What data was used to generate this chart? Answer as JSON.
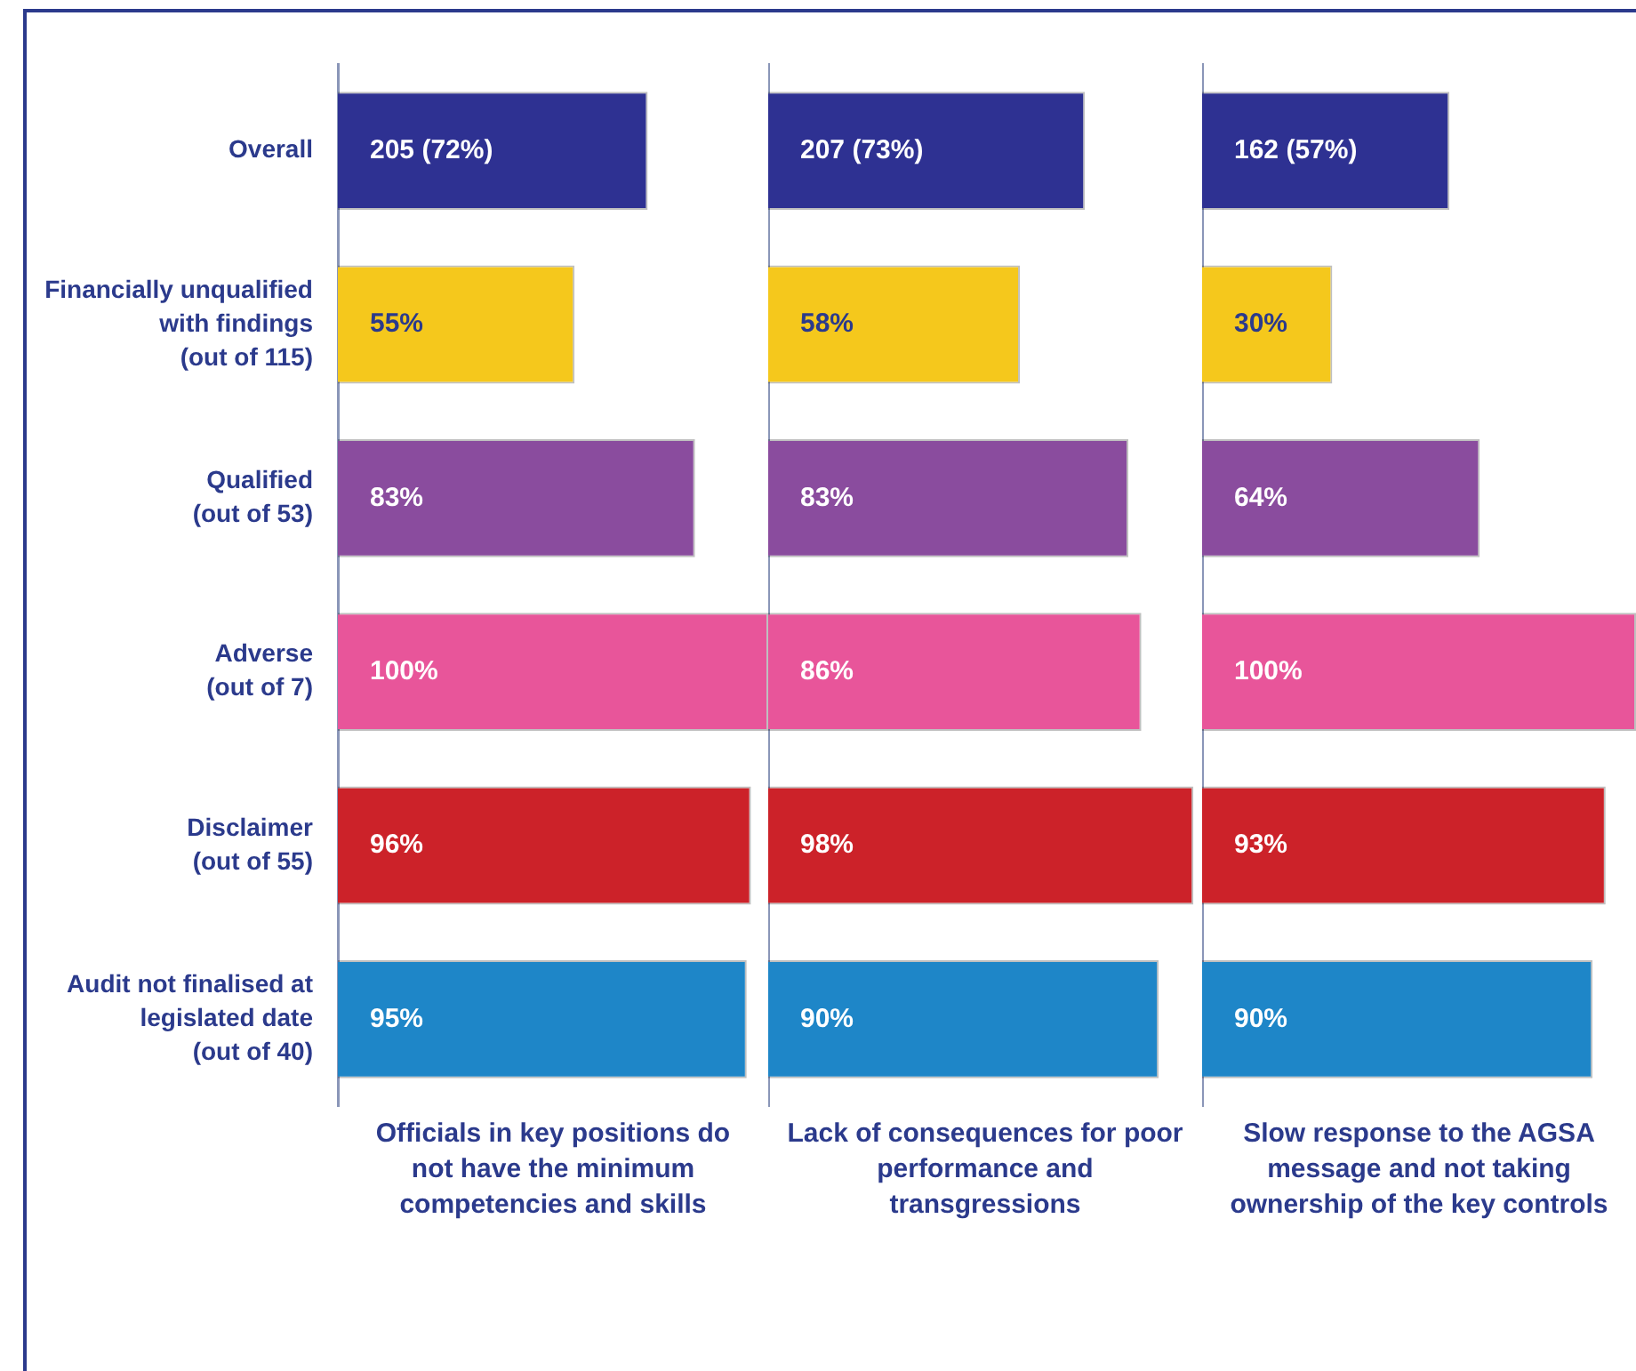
{
  "chart_data": [
    {
      "type": "bar",
      "orientation": "horizontal",
      "categories": [
        "Overall",
        "Financially unqualified\nwith findings\n(out of 115)",
        "Qualified\n(out of 53)",
        "Adverse\n(out of 7)",
        "Disclaimer\n(out of 55)",
        "Audit not finalised at\nlegislated date\n(out of 40)"
      ],
      "values": [
        72,
        55,
        83,
        100,
        96,
        95
      ],
      "value_labels": [
        "205 (72%)",
        "55%",
        "83%",
        "100%",
        "96%",
        "95%"
      ],
      "colors": [
        "#2e3192",
        "#f5c81c",
        "#8a4c9e",
        "#e8559a",
        "#cc2229",
        "#1e86c8"
      ],
      "tick_labels": "y",
      "xlabel": "Officials in key positions do not have the minimum competencies and skills"
    },
    {
      "type": "bar",
      "orientation": "horizontal",
      "categories": [
        null,
        null,
        null,
        null,
        null,
        null
      ],
      "values": [
        73,
        58,
        83,
        86,
        98,
        90
      ],
      "value_labels": [
        "207 (73%)",
        "58%",
        "83%",
        "86%",
        "98%",
        "90%"
      ],
      "colors": [
        "#2e3192",
        "#f5c81c",
        "#8a4c9e",
        "#e8559a",
        "#cc2229",
        "#1e86c8"
      ],
      "tick_labels": false,
      "xlabel": "Lack of consequences for poor performance and transgressions"
    },
    {
      "type": "bar",
      "orientation": "horizontal",
      "categories": [
        null,
        null,
        null,
        null,
        null,
        null
      ],
      "values": [
        57,
        30,
        64,
        100,
        93,
        90
      ],
      "value_labels": [
        "162 (57%)",
        "30%",
        "64%",
        "100%",
        "93%",
        "90%"
      ],
      "colors": [
        "#2e3192",
        "#f5c81c",
        "#8a4c9e",
        "#e8559a",
        "#cc2229",
        "#1e86c8"
      ],
      "tick_labels": false,
      "xlabel": "Slow response to the AGSA message and not taking ownership of the key controls"
    }
  ]
}
